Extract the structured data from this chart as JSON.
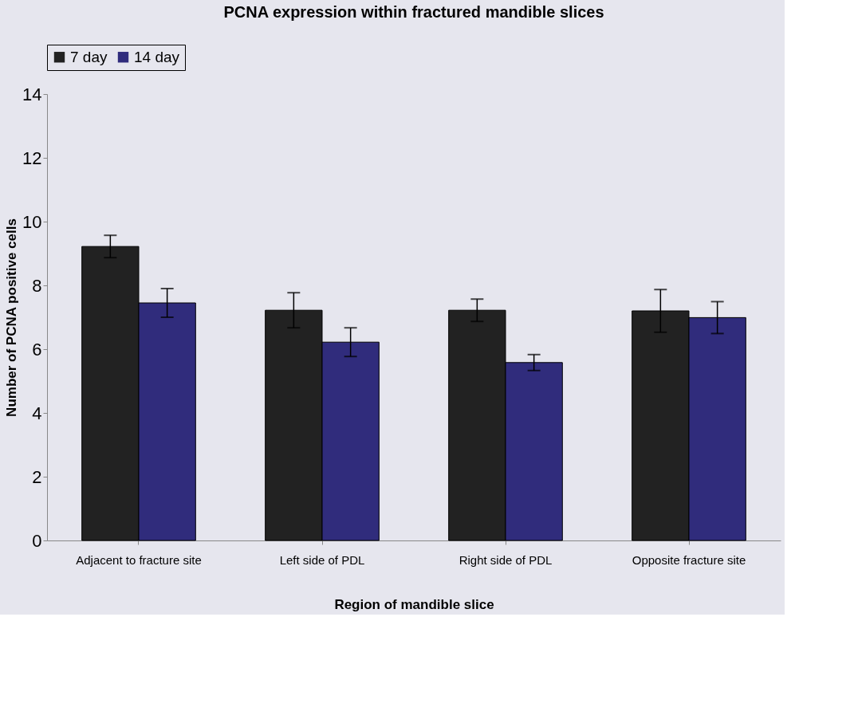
{
  "chart_data": {
    "type": "bar",
    "title": "PCNA expression within fractured mandible slices",
    "xlabel": "Region of mandible slice",
    "ylabel": "Number of PCNA positive cells",
    "categories": [
      "Adjacent to fracture site",
      "Left side of PDL",
      "Right side of PDL",
      "Opposite fracture site"
    ],
    "series": [
      {
        "name": "7 day",
        "color": "#222222",
        "values": [
          9.22,
          7.22,
          7.22,
          7.2
        ],
        "errors": [
          0.35,
          0.55,
          0.35,
          0.67
        ]
      },
      {
        "name": "14 day",
        "color": "#302c7c",
        "values": [
          7.45,
          6.22,
          5.58,
          6.99
        ],
        "errors": [
          0.45,
          0.45,
          0.25,
          0.5
        ]
      }
    ],
    "ylim": [
      0,
      14
    ],
    "yticks": [
      0,
      2,
      4,
      6,
      8,
      10,
      12,
      14
    ],
    "grid": false,
    "legend": "top"
  }
}
